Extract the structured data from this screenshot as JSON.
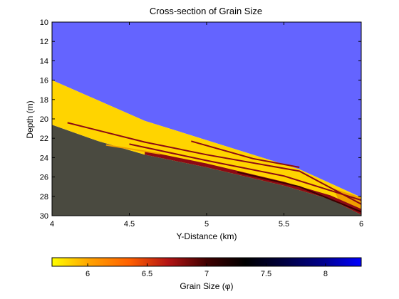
{
  "chart_data": [
    {
      "type": "heatmap",
      "title": "Cross-section of Grain Size",
      "xlabel": "Y-Distance (km)",
      "ylabel": "Depth (m)",
      "xlim": [
        4,
        6
      ],
      "ylim": [
        10,
        30
      ],
      "y_reversed": true,
      "xticks": [
        "4",
        "4.5",
        "5",
        "5.5",
        "6"
      ],
      "yticks": [
        "10",
        "12",
        "14",
        "16",
        "18",
        "20",
        "22",
        "24",
        "26",
        "28",
        "30"
      ],
      "grid": false,
      "colors": {
        "water": "#6464ff",
        "bed": "#4a4a40",
        "fine": "#ffd400",
        "mid": "#f0a000",
        "coarse": "#8b0a14",
        "dark": "#3a0000"
      },
      "regions": [
        {
          "id": "water",
          "color": "water",
          "polygon": [
            [
              4,
              10
            ],
            [
              6,
              10
            ],
            [
              6,
              28.1
            ],
            [
              5.6,
              25.2
            ],
            [
              4.6,
              20.2
            ],
            [
              4,
              16
            ]
          ]
        },
        {
          "id": "bed",
          "color": "bed",
          "polygon": [
            [
              4,
              20.6
            ],
            [
              4.3,
              22.3
            ],
            [
              4.6,
              23.7
            ],
            [
              5,
              25
            ],
            [
              5.5,
              26.9
            ],
            [
              5.8,
              28.3
            ],
            [
              6,
              29.9
            ],
            [
              6,
              30
            ],
            [
              4,
              30
            ]
          ]
        },
        {
          "id": "deposit",
          "color": "fine",
          "polygon": [
            [
              4,
              16
            ],
            [
              4.6,
              20.2
            ],
            [
              5.6,
              25.2
            ],
            [
              6,
              28.1
            ],
            [
              6,
              29.9
            ],
            [
              5.8,
              28.3
            ],
            [
              5.5,
              26.9
            ],
            [
              5,
              25
            ],
            [
              4.6,
              23.7
            ],
            [
              4.3,
              22.3
            ],
            [
              4,
              20.6
            ]
          ]
        },
        {
          "id": "coarse-toe",
          "color": "mid",
          "polygon": [
            [
              5.82,
              27.2
            ],
            [
              6,
              28.1
            ],
            [
              6,
              29.3
            ],
            [
              5.86,
              28.6
            ]
          ]
        },
        {
          "id": "coarse-bottom",
          "color": "coarse",
          "polygon": [
            [
              4.6,
              23.3
            ],
            [
              5,
              24.6
            ],
            [
              5.5,
              26.5
            ],
            [
              5.8,
              27.9
            ],
            [
              6,
              29.3
            ],
            [
              6,
              29.9
            ],
            [
              5.8,
              28.3
            ],
            [
              5.5,
              26.9
            ],
            [
              5,
              25
            ],
            [
              4.6,
              23.7
            ]
          ]
        }
      ],
      "bands": [
        {
          "color": "coarse",
          "points": [
            [
              4.1,
              20.4
            ],
            [
              4.6,
              22.4
            ],
            [
              5,
              23.7
            ],
            [
              5.6,
              25.4
            ],
            [
              6,
              28.8
            ]
          ]
        },
        {
          "color": "coarse",
          "points": [
            [
              4.5,
              22.6
            ],
            [
              5,
              24.3
            ],
            [
              5.5,
              25.9
            ],
            [
              6,
              28.4
            ]
          ]
        },
        {
          "color": "coarse",
          "points": [
            [
              4.9,
              22.3
            ],
            [
              5.3,
              24.1
            ],
            [
              5.6,
              25.0
            ]
          ]
        },
        {
          "color": "dark",
          "points": [
            [
              5.2,
              25.5
            ],
            [
              5.6,
              27.0
            ],
            [
              6,
              29.6
            ]
          ]
        },
        {
          "color": "mid",
          "points": [
            [
              4.35,
              22.7
            ],
            [
              4.7,
              23.6
            ]
          ]
        }
      ],
      "colorbar": {
        "label": "Grain Size (φ)",
        "range": [
          5.7,
          8.3
        ],
        "ticks": [
          "6",
          "6.5",
          "7",
          "7.5",
          "8"
        ],
        "stops": [
          "#ffff00",
          "#ffa000",
          "#ff6000",
          "#b41414",
          "#400000",
          "#000000",
          "#000040",
          "#00008c",
          "#0000ff"
        ]
      }
    }
  ]
}
